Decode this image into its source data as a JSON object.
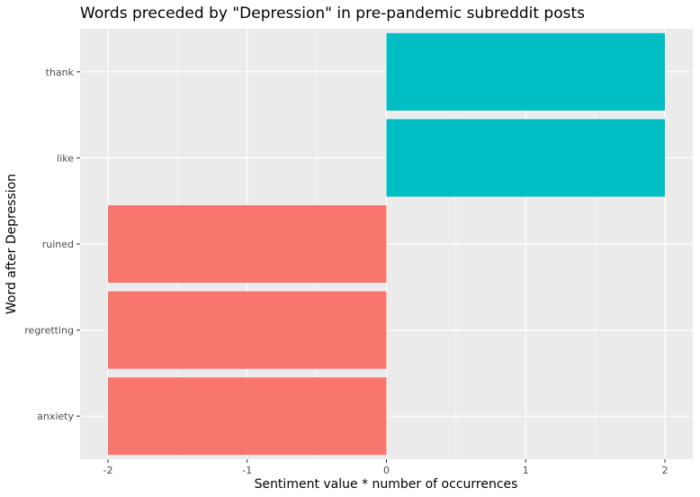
{
  "chart_data": {
    "type": "bar",
    "orientation": "horizontal",
    "title": "Words preceded by \"Depression\" in pre-pandemic subreddit posts",
    "xlabel": "Sentiment value * number of occurrences",
    "ylabel": "Word after Depression",
    "categories": [
      "anxiety",
      "regretting",
      "ruined",
      "like",
      "thank"
    ],
    "values": [
      -2,
      -2,
      -2,
      2,
      2
    ],
    "xlim": [
      -2.2,
      2.2
    ],
    "xticks": [
      -2,
      -1,
      0,
      1,
      2
    ],
    "xtick_labels": [
      "-2",
      "-1",
      "0",
      "1",
      "2"
    ],
    "grid": true,
    "legend": "none",
    "colors": {
      "negative": "#F8766D",
      "positive": "#00BFC4",
      "panel": "#EBEBEB",
      "grid": "#FFFFFF",
      "tick_text": "#4D4D4D"
    }
  }
}
